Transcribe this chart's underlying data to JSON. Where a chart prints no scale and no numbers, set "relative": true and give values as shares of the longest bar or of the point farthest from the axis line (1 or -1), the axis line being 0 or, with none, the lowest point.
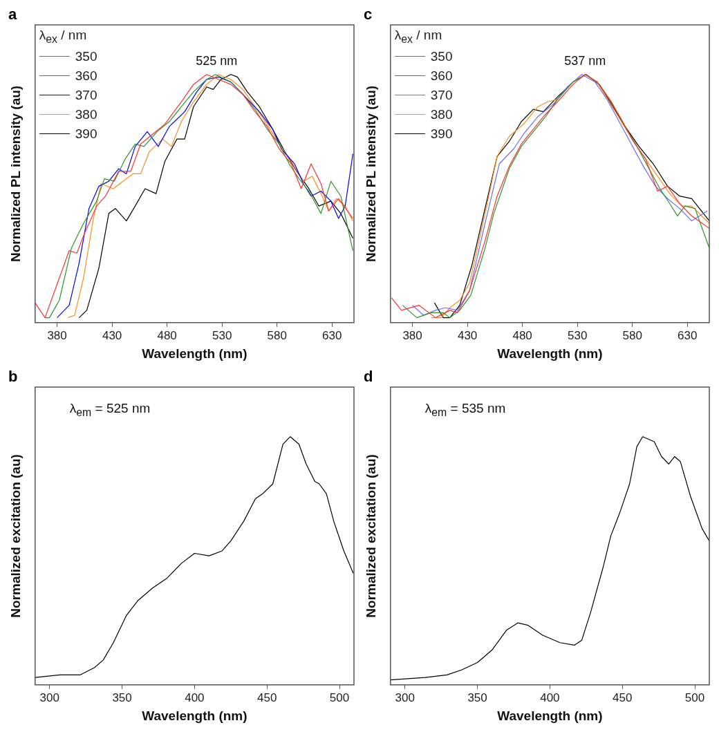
{
  "chart_data": [
    {
      "type": "line",
      "relative": true,
      "xlabel": "Wavelength (nm)",
      "ylabel": "Normalized PL intensity (au)",
      "legend_title": "λ$_{ex}$ / nm",
      "legend": "top left",
      "xlim": [
        360,
        650
      ],
      "xticks": [
        380,
        430,
        480,
        530,
        580,
        630
      ],
      "annotations": [
        "a",
        {
          "text": "525 nm",
          "x": 525,
          "y": 1
        }
      ],
      "series": [
        {
          "name": "350",
          "color": "#ff3030",
          "x": [
            360,
            369,
            382,
            391,
            398,
            404,
            416,
            424,
            436,
            447,
            456,
            467,
            478,
            493,
            504,
            516,
            527,
            538,
            549,
            560,
            571,
            582,
            593,
            602,
            611,
            620,
            627,
            636,
            649
          ],
          "values": [
            0.08,
            0.02,
            0.18,
            0.29,
            0.28,
            0.35,
            0.47,
            0.51,
            0.61,
            0.61,
            0.72,
            0.76,
            0.8,
            0.89,
            0.96,
            1.0,
            0.98,
            0.96,
            0.92,
            0.85,
            0.79,
            0.7,
            0.64,
            0.54,
            0.64,
            0.56,
            0.45,
            0.5,
            0.42
          ]
        },
        {
          "name": "360",
          "color": "#2a962a",
          "x": [
            369,
            373,
            382,
            393,
            404,
            416,
            423,
            432,
            442,
            451,
            459,
            471,
            482,
            493,
            504,
            516,
            524,
            538,
            549,
            560,
            571,
            582,
            591,
            600,
            609,
            620,
            629,
            638,
            649
          ],
          "values": [
            0.02,
            0.02,
            0.09,
            0.3,
            0.4,
            0.49,
            0.58,
            0.57,
            0.66,
            0.72,
            0.71,
            0.77,
            0.81,
            0.87,
            0.93,
            0.98,
            1.0,
            0.97,
            0.92,
            0.86,
            0.78,
            0.72,
            0.64,
            0.58,
            0.53,
            0.44,
            0.57,
            0.51,
            0.29
          ]
        },
        {
          "name": "370",
          "color": "#0000ff",
          "x": [
            380,
            391,
            400,
            409,
            418,
            427,
            436,
            443,
            451,
            462,
            472,
            482,
            496,
            507,
            516,
            527,
            538,
            549,
            564,
            576,
            584,
            596,
            604,
            611,
            620,
            629,
            636,
            642,
            649
          ],
          "values": [
            0.02,
            0.07,
            0.24,
            0.46,
            0.55,
            0.57,
            0.62,
            0.6,
            0.71,
            0.77,
            0.71,
            0.79,
            0.85,
            0.93,
            0.98,
            0.99,
            0.97,
            0.92,
            0.85,
            0.78,
            0.7,
            0.64,
            0.56,
            0.51,
            0.53,
            0.49,
            0.42,
            0.47,
            0.68
          ]
        },
        {
          "name": "380",
          "color": "#ff8c1a",
          "x": [
            390,
            396,
            404,
            413,
            420,
            431,
            440,
            449,
            456,
            464,
            476,
            484,
            493,
            504,
            516,
            527,
            538,
            549,
            560,
            571,
            582,
            593,
            604,
            612,
            620,
            627,
            634,
            642,
            649
          ],
          "values": [
            0.02,
            0.03,
            0.18,
            0.42,
            0.56,
            0.54,
            0.57,
            0.6,
            0.6,
            0.69,
            0.74,
            0.71,
            0.81,
            0.89,
            0.96,
            1.0,
            0.98,
            0.94,
            0.87,
            0.8,
            0.72,
            0.65,
            0.57,
            0.59,
            0.52,
            0.45,
            0.5,
            0.47,
            0.41
          ]
        },
        {
          "name": "390",
          "color": "#000000",
          "x": [
            400,
            407,
            418,
            427,
            433,
            443,
            451,
            460,
            470,
            478,
            489,
            496,
            504,
            516,
            522,
            529,
            538,
            544,
            553,
            564,
            576,
            587,
            598,
            609,
            618,
            629,
            638,
            649
          ],
          "values": [
            0.02,
            0.05,
            0.22,
            0.44,
            0.46,
            0.41,
            0.47,
            0.54,
            0.52,
            0.65,
            0.74,
            0.74,
            0.87,
            0.95,
            0.94,
            0.98,
            1.0,
            0.99,
            0.93,
            0.87,
            0.78,
            0.69,
            0.61,
            0.54,
            0.47,
            0.49,
            0.44,
            0.34
          ]
        }
      ]
    },
    {
      "type": "line",
      "relative": true,
      "xlabel": "Wavelength (nm)",
      "ylabel": "Normalized PL intensity (au)",
      "legend_title": "λ$_{ex}$ / nm",
      "legend": "top left",
      "xlim": [
        360,
        650
      ],
      "xticks": [
        380,
        430,
        480,
        530,
        580,
        630
      ],
      "annotations": [
        "c",
        {
          "text": "537 nm",
          "x": 537,
          "y": 1
        }
      ],
      "series": [
        {
          "name": "350",
          "color": "#ff3030",
          "x": [
            361,
            370,
            386,
            401,
            414,
            421,
            432,
            446,
            457,
            468,
            479,
            490,
            501,
            512,
            526,
            537,
            548,
            559,
            570,
            581,
            592,
            603,
            612,
            623,
            634,
            650
          ],
          "values": [
            0.1,
            0.05,
            0.07,
            0.02,
            0.05,
            0.04,
            0.13,
            0.33,
            0.51,
            0.63,
            0.72,
            0.78,
            0.84,
            0.89,
            0.96,
            1.0,
            0.97,
            0.9,
            0.82,
            0.73,
            0.66,
            0.53,
            0.55,
            0.48,
            0.43,
            0.38
          ]
        },
        {
          "name": "360",
          "color": "#2a962a",
          "x": [
            371,
            384,
            397,
            408,
            414,
            423,
            433,
            446,
            454,
            468,
            479,
            490,
            501,
            512,
            526,
            538,
            550,
            561,
            572,
            583,
            594,
            605,
            614,
            621,
            628,
            637,
            650
          ],
          "values": [
            0.07,
            0.02,
            0.04,
            0.04,
            0.02,
            0.05,
            0.11,
            0.3,
            0.44,
            0.62,
            0.71,
            0.77,
            0.83,
            0.9,
            0.97,
            1.0,
            0.96,
            0.89,
            0.8,
            0.72,
            0.63,
            0.54,
            0.48,
            0.43,
            0.47,
            0.46,
            0.3
          ]
        },
        {
          "name": "370",
          "color": "#6a6aff",
          "x": [
            380,
            390,
            401,
            410,
            421,
            432,
            446,
            459,
            472,
            481,
            494,
            508,
            521,
            534,
            546,
            557,
            568,
            579,
            590,
            601,
            612,
            623,
            634,
            648
          ],
          "values": [
            0.07,
            0.03,
            0.05,
            0.06,
            0.05,
            0.13,
            0.4,
            0.64,
            0.7,
            0.76,
            0.83,
            0.88,
            0.95,
            1.0,
            0.97,
            0.9,
            0.81,
            0.72,
            0.63,
            0.55,
            0.5,
            0.46,
            0.41,
            0.45
          ]
        },
        {
          "name": "380",
          "color": "#ff8c1a",
          "x": [
            397,
            406,
            414,
            423,
            432,
            446,
            457,
            468,
            481,
            494,
            503,
            512,
            526,
            537,
            548,
            559,
            570,
            581,
            592,
            603,
            614,
            625,
            634,
            650
          ],
          "values": [
            0.02,
            0.02,
            0.06,
            0.09,
            0.16,
            0.44,
            0.67,
            0.75,
            0.8,
            0.87,
            0.89,
            0.9,
            0.97,
            1.0,
            0.97,
            0.89,
            0.81,
            0.73,
            0.66,
            0.59,
            0.52,
            0.47,
            0.47,
            0.4
          ]
        },
        {
          "name": "390",
          "color": "#000000",
          "x": [
            400,
            408,
            414,
            423,
            434,
            446,
            457,
            468,
            479,
            490,
            499,
            512,
            526,
            538,
            550,
            561,
            572,
            586,
            599,
            612,
            623,
            634,
            650
          ],
          "values": [
            0.08,
            0.02,
            0.02,
            0.07,
            0.23,
            0.46,
            0.67,
            0.73,
            0.81,
            0.86,
            0.85,
            0.91,
            0.97,
            1.0,
            0.96,
            0.88,
            0.8,
            0.71,
            0.64,
            0.55,
            0.51,
            0.5,
            0.41
          ]
        }
      ]
    },
    {
      "type": "line",
      "relative": true,
      "xlabel": "Wavelength (nm)",
      "ylabel": "Normalized excitation (au)",
      "xlim": [
        290,
        510
      ],
      "xticks": [
        300,
        350,
        400,
        450,
        500
      ],
      "annotations": [
        "b",
        "λ$_{em}$ = 525 nm"
      ],
      "series": [
        {
          "color": "#000000",
          "x": [
            290,
            307,
            321,
            331,
            337,
            344,
            353,
            361,
            371,
            381,
            391,
            400,
            410,
            419,
            425,
            434,
            442,
            447,
            454,
            461,
            466,
            472,
            477,
            483,
            486,
            491,
            496,
            503,
            509.5
          ],
          "values": [
            0.03,
            0.04,
            0.04,
            0.07,
            0.1,
            0.17,
            0.28,
            0.34,
            0.39,
            0.43,
            0.49,
            0.53,
            0.52,
            0.54,
            0.58,
            0.66,
            0.75,
            0.77,
            0.81,
            0.97,
            1.0,
            0.97,
            0.89,
            0.82,
            0.81,
            0.77,
            0.66,
            0.54,
            0.45
          ]
        }
      ]
    },
    {
      "type": "line",
      "relative": true,
      "xlabel": "Wavelength (nm)",
      "ylabel": "Normalized excitation (au)",
      "xlim": [
        290,
        510
      ],
      "xticks": [
        300,
        350,
        400,
        450,
        500
      ],
      "annotations": [
        "d",
        "λ$_{em}$ = 535 nm"
      ],
      "series": [
        {
          "color": "#000000",
          "x": [
            290,
            314,
            329,
            339,
            350,
            360,
            370,
            378,
            385,
            395,
            407,
            417,
            422,
            428,
            437,
            442,
            448,
            455,
            460,
            464,
            472,
            477,
            482,
            486,
            490,
            497,
            505,
            510
          ],
          "values": [
            0.02,
            0.03,
            0.04,
            0.06,
            0.09,
            0.14,
            0.22,
            0.25,
            0.24,
            0.2,
            0.17,
            0.16,
            0.18,
            0.29,
            0.48,
            0.6,
            0.69,
            0.81,
            0.96,
            1.0,
            0.98,
            0.92,
            0.89,
            0.92,
            0.9,
            0.76,
            0.63,
            0.58
          ]
        }
      ]
    }
  ]
}
